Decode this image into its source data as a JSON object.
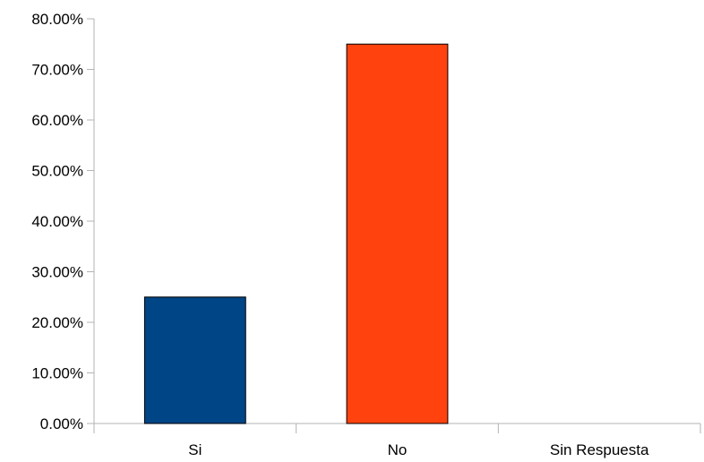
{
  "chart_data": {
    "type": "bar",
    "categories": [
      "Si",
      "No",
      "Sin Respuesta"
    ],
    "values": [
      25,
      75,
      0
    ],
    "value_unit": "percent",
    "colors": [
      "#004586",
      "#ff420e",
      "#ffd320"
    ],
    "ylim": [
      0,
      80
    ],
    "yticks": [
      0,
      10,
      20,
      30,
      40,
      50,
      60,
      70,
      80
    ],
    "ytick_labels": [
      "0.00%",
      "10.00%",
      "20.00%",
      "30.00%",
      "40.00%",
      "50.00%",
      "60.00%",
      "70.00%",
      "80.00%"
    ],
    "grid": false,
    "legend": "none",
    "title": "",
    "xlabel": "",
    "ylabel": ""
  }
}
